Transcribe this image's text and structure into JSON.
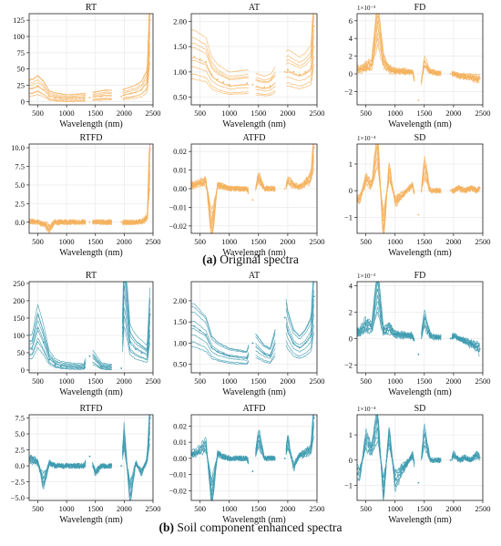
{
  "colors": {
    "original": "#f4b15e",
    "enhanced": "#3e9bb0"
  },
  "captions": {
    "a": {
      "letter": "(a)",
      "text": " Original spectra"
    },
    "b": {
      "letter": "(b)",
      "text": " Soil component enhanced spectra"
    }
  },
  "chart_data": [
    {
      "id": "a_RT",
      "type": "line",
      "title": "RT",
      "xlabel": "Wavelength (nm)",
      "ylabel": "",
      "scale_note": "",
      "xlim": [
        350,
        2500
      ],
      "ylim": [
        -5,
        135
      ],
      "xticks": [
        500,
        1000,
        1500,
        2000,
        2500
      ],
      "yticks": [
        0,
        25,
        50,
        75,
        100,
        125
      ],
      "x": [
        400,
        500,
        600,
        700,
        800,
        900,
        1000,
        1300,
        1400,
        1600,
        1700,
        1950,
        2000,
        2100,
        2200,
        2300,
        2400,
        2450
      ],
      "series": [
        {
          "values": [
            20,
            24,
            18,
            8,
            6,
            5,
            4,
            5,
            6,
            8,
            9,
            8,
            10,
            12,
            14,
            18,
            30,
            125
          ]
        }
      ],
      "grid": true
    },
    {
      "id": "a_AT",
      "type": "line",
      "title": "AT",
      "xlabel": "Wavelength (nm)",
      "ylabel": "",
      "scale_note": "",
      "xlim": [
        350,
        2500
      ],
      "ylim": [
        0.35,
        2.15
      ],
      "xticks": [
        500,
        1000,
        1500,
        2000,
        2500
      ],
      "yticks": [
        0.5,
        1.0,
        1.5,
        2.0
      ],
      "x": [
        400,
        500,
        600,
        700,
        800,
        900,
        1000,
        1300,
        1400,
        1600,
        1700,
        1950,
        2000,
        2100,
        2200,
        2300,
        2400,
        2450
      ],
      "series": [
        {
          "values": [
            1.3,
            1.25,
            1.2,
            0.95,
            0.85,
            0.8,
            0.75,
            0.78,
            0.75,
            0.7,
            0.72,
            1.0,
            1.05,
            1.0,
            0.95,
            1.0,
            1.1,
            1.9
          ]
        }
      ],
      "grid": true
    },
    {
      "id": "a_FD",
      "type": "line",
      "title": "FD",
      "xlabel": "Wavelength (nm)",
      "ylabel": "",
      "scale_note": "1×10⁻³",
      "xlim": [
        350,
        2500
      ],
      "ylim": [
        -3.5,
        6.8
      ],
      "xticks": [
        500,
        1000,
        1500,
        2000,
        2500
      ],
      "yticks": [
        -2,
        0,
        2,
        4,
        6
      ],
      "x": [
        400,
        500,
        600,
        700,
        800,
        900,
        1000,
        1300,
        1400,
        1500,
        1600,
        1700,
        1950,
        2000,
        2100,
        2200,
        2300,
        2400,
        2450
      ],
      "series": [
        {
          "values": [
            0.5,
            0.8,
            1.0,
            5.8,
            1.5,
            0.5,
            0.3,
            0.2,
            -3.0,
            1.3,
            0.2,
            0.1,
            0.0,
            0.0,
            -0.2,
            -0.3,
            -0.4,
            -0.5,
            -0.5
          ]
        }
      ],
      "grid": true
    },
    {
      "id": "a_RTFD",
      "type": "line",
      "title": "RTFD",
      "xlabel": "Wavelength (nm)",
      "ylabel": "",
      "scale_note": "",
      "xlim": [
        350,
        2500
      ],
      "ylim": [
        -1.5,
        10.5
      ],
      "xticks": [
        500,
        1000,
        1500,
        2000,
        2500
      ],
      "yticks": [
        0.0,
        2.5,
        5.0,
        7.5,
        10.0
      ],
      "x": [
        400,
        500,
        600,
        700,
        800,
        900,
        1000,
        1300,
        1400,
        1600,
        1700,
        1950,
        2000,
        2100,
        2200,
        2300,
        2400,
        2450
      ],
      "series": [
        {
          "values": [
            0.1,
            0.0,
            -0.2,
            -0.8,
            0.0,
            0.0,
            0.0,
            0.0,
            0.0,
            0.0,
            0.0,
            0.0,
            0.0,
            0.0,
            0.0,
            0.1,
            0.5,
            9.8
          ]
        }
      ],
      "grid": true
    },
    {
      "id": "a_ATFD",
      "type": "line",
      "title": "ATFD",
      "xlabel": "Wavelength (nm)",
      "ylabel": "",
      "scale_note": "",
      "xlim": [
        350,
        2500
      ],
      "ylim": [
        -0.024,
        0.024
      ],
      "xticks": [
        500,
        1000,
        1500,
        2000,
        2500
      ],
      "yticks": [
        -0.02,
        -0.01,
        0.0,
        0.01,
        0.02
      ],
      "x": [
        400,
        500,
        600,
        700,
        800,
        900,
        1000,
        1300,
        1400,
        1500,
        1600,
        1700,
        1950,
        2000,
        2100,
        2200,
        2300,
        2400,
        2450
      ],
      "series": [
        {
          "values": [
            0.002,
            0.003,
            0.004,
            -0.021,
            0.002,
            0.001,
            0.0,
            0.0,
            -0.006,
            0.006,
            0.0,
            0.0,
            0.0,
            0.004,
            0.002,
            0.001,
            0.003,
            0.006,
            0.022
          ]
        }
      ],
      "grid": true
    },
    {
      "id": "a_SD",
      "type": "line",
      "title": "SD",
      "xlabel": "Wavelength (nm)",
      "ylabel": "",
      "scale_note": "1×10⁻⁴",
      "xlim": [
        350,
        2500
      ],
      "ylim": [
        -1.6,
        1.75
      ],
      "xticks": [
        500,
        1000,
        1500,
        2000,
        2500
      ],
      "yticks": [
        -1,
        0,
        1
      ],
      "x": [
        400,
        500,
        600,
        700,
        800,
        900,
        1000,
        1300,
        1400,
        1500,
        1600,
        1700,
        1950,
        2000,
        2100,
        2200,
        2300,
        2400,
        2450
      ],
      "series": [
        {
          "values": [
            -0.3,
            0.4,
            0.2,
            1.6,
            -1.4,
            0.8,
            -0.4,
            0.2,
            -0.9,
            0.9,
            0.0,
            0.0,
            0.0,
            0.0,
            0.1,
            0.0,
            0.1,
            0.0,
            0.1
          ]
        }
      ],
      "grid": true
    },
    {
      "id": "b_RT",
      "type": "line",
      "title": "RT",
      "xlabel": "Wavelength (nm)",
      "ylabel": "",
      "scale_note": "",
      "xlim": [
        350,
        2500
      ],
      "ylim": [
        -8,
        255
      ],
      "xticks": [
        500,
        1000,
        1500,
        2000,
        2500
      ],
      "yticks": [
        0,
        50,
        100,
        150,
        200,
        250
      ],
      "x": [
        400,
        500,
        600,
        700,
        800,
        900,
        1000,
        1300,
        1400,
        1600,
        1700,
        1950,
        2000,
        2100,
        2200,
        2300,
        2400,
        2450
      ],
      "series": [
        {
          "values": [
            60,
            120,
            80,
            30,
            15,
            10,
            8,
            5,
            40,
            8,
            5,
            5,
            240,
            80,
            60,
            50,
            40,
            160
          ]
        }
      ],
      "grid": true
    },
    {
      "id": "b_AT",
      "type": "line",
      "title": "AT",
      "xlabel": "Wavelength (nm)",
      "ylabel": "",
      "scale_note": "",
      "xlim": [
        350,
        2500
      ],
      "ylim": [
        0.3,
        2.45
      ],
      "xticks": [
        500,
        1000,
        1500,
        2000,
        2500
      ],
      "yticks": [
        0.5,
        1.0,
        1.5,
        2.0
      ],
      "x": [
        400,
        500,
        600,
        700,
        800,
        900,
        1000,
        1300,
        1400,
        1600,
        1700,
        1950,
        2000,
        2100,
        2200,
        2300,
        2400,
        2450
      ],
      "series": [
        {
          "values": [
            1.4,
            1.3,
            1.2,
            0.9,
            0.8,
            0.75,
            0.7,
            0.65,
            1.0,
            0.75,
            0.7,
            1.6,
            1.3,
            1.0,
            0.9,
            1.0,
            1.2,
            2.1
          ]
        }
      ],
      "grid": true
    },
    {
      "id": "b_FD",
      "type": "line",
      "title": "FD",
      "xlabel": "Wavelength (nm)",
      "ylabel": "",
      "scale_note": "1×10⁻³",
      "xlim": [
        350,
        2500
      ],
      "ylim": [
        -2.6,
        4.3
      ],
      "xticks": [
        500,
        1000,
        1500,
        2000,
        2500
      ],
      "yticks": [
        -2,
        0,
        2,
        4
      ],
      "x": [
        400,
        500,
        600,
        700,
        800,
        900,
        1000,
        1300,
        1400,
        1500,
        1600,
        1700,
        1950,
        2000,
        2100,
        2200,
        2300,
        2400,
        2450
      ],
      "series": [
        {
          "values": [
            0.5,
            1.0,
            0.8,
            3.7,
            0.5,
            0.8,
            0.3,
            0.2,
            -1.2,
            1.5,
            0.2,
            0.1,
            0.0,
            0.2,
            0.0,
            -0.2,
            -0.4,
            -0.6,
            -0.8
          ]
        }
      ],
      "grid": true
    },
    {
      "id": "b_RTFD",
      "type": "line",
      "title": "RTFD",
      "xlabel": "Wavelength (nm)",
      "ylabel": "",
      "scale_note": "",
      "xlim": [
        350,
        2500
      ],
      "ylim": [
        -5.4,
        8.0
      ],
      "xticks": [
        500,
        1000,
        1500,
        2000,
        2500
      ],
      "yticks": [
        -5.0,
        -2.5,
        0.0,
        2.5,
        5.0,
        7.5
      ],
      "x": [
        400,
        500,
        600,
        700,
        800,
        900,
        1000,
        1300,
        1400,
        1500,
        1600,
        1700,
        1950,
        2000,
        2100,
        2200,
        2300,
        2400,
        2450
      ],
      "series": [
        {
          "values": [
            1.0,
            0.5,
            -2.5,
            0.5,
            0.0,
            0.0,
            0.0,
            0.0,
            1.5,
            -1.0,
            0.0,
            0.0,
            0.0,
            4.5,
            -4.5,
            0.5,
            -1.0,
            1.0,
            7.5
          ]
        }
      ],
      "grid": true
    },
    {
      "id": "b_ATFD",
      "type": "line",
      "title": "ATFD",
      "xlabel": "Wavelength (nm)",
      "ylabel": "",
      "scale_note": "",
      "xlim": [
        350,
        2500
      ],
      "ylim": [
        -0.026,
        0.027
      ],
      "xticks": [
        500,
        1000,
        1500,
        2000,
        2500
      ],
      "yticks": [
        -0.02,
        -0.01,
        0.0,
        0.01,
        0.02
      ],
      "x": [
        400,
        500,
        600,
        700,
        800,
        900,
        1000,
        1300,
        1400,
        1500,
        1600,
        1700,
        1950,
        2000,
        2100,
        2200,
        2300,
        2400,
        2450
      ],
      "series": [
        {
          "values": [
            0.003,
            0.005,
            0.008,
            -0.022,
            0.003,
            0.001,
            0.0,
            0.0,
            -0.008,
            0.013,
            0.0,
            0.0,
            0.0,
            0.01,
            -0.005,
            0.002,
            0.003,
            0.006,
            0.025
          ]
        }
      ],
      "grid": true
    },
    {
      "id": "b_SD",
      "type": "line",
      "title": "SD",
      "xlabel": "Wavelength (nm)",
      "ylabel": "",
      "scale_note": "1×10⁻⁴",
      "xlim": [
        350,
        2500
      ],
      "ylim": [
        -1.6,
        1.8
      ],
      "xticks": [
        500,
        1000,
        1500,
        2000,
        2500
      ],
      "yticks": [
        -1,
        0,
        1
      ],
      "x": [
        400,
        500,
        600,
        700,
        800,
        900,
        1000,
        1300,
        1400,
        1500,
        1600,
        1700,
        1950,
        2000,
        2100,
        2200,
        2300,
        2400,
        2450
      ],
      "series": [
        {
          "values": [
            -0.5,
            0.8,
            0.4,
            1.5,
            -1.2,
            1.0,
            -0.8,
            0.2,
            -0.9,
            1.0,
            0.0,
            0.0,
            0.0,
            0.2,
            0.0,
            0.1,
            0.0,
            0.2,
            0.1
          ]
        }
      ],
      "grid": true
    }
  ]
}
